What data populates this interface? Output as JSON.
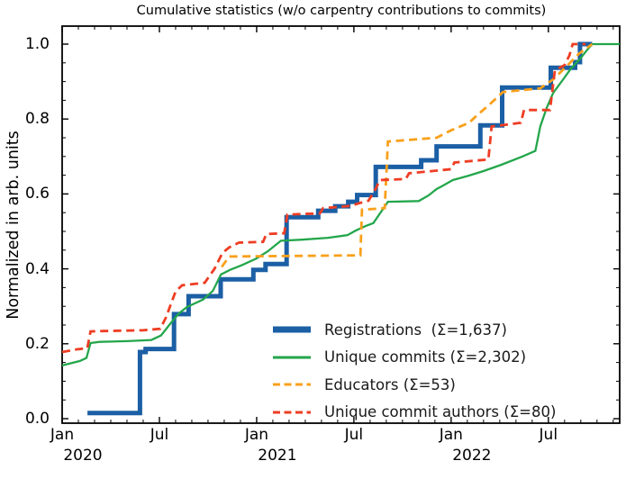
{
  "chart_data": {
    "type": "line",
    "title": "Cumulative statistics (w/o carpentry contributions to commits)",
    "ylabel": "Normalized in arb. units",
    "xlabel": "",
    "x_unit": "months since 2020-01-01",
    "xlim": [
      0,
      34.4
    ],
    "ylim": [
      -0.012,
      1.048
    ],
    "grid": false,
    "legend_position": "lower right",
    "axis_color": "#000000",
    "x_major_ticks": [
      {
        "m": 0,
        "label": "Jan",
        "year": "2020"
      },
      {
        "m": 6,
        "label": "Jul",
        "year": ""
      },
      {
        "m": 12,
        "label": "Jan",
        "year": "2021"
      },
      {
        "m": 18,
        "label": "Jul",
        "year": ""
      },
      {
        "m": 24,
        "label": "Jan",
        "year": "2022"
      },
      {
        "m": 30,
        "label": "Jul",
        "year": ""
      }
    ],
    "y_major_ticks": [
      {
        "v": 0.0,
        "label": "0.0"
      },
      {
        "v": 0.2,
        "label": "0.2"
      },
      {
        "v": 0.4,
        "label": "0.4"
      },
      {
        "v": 0.6,
        "label": "0.6"
      },
      {
        "v": 0.8,
        "label": "0.8"
      },
      {
        "v": 1.0,
        "label": "1.0"
      }
    ],
    "x_minor_tick_every_months": 1,
    "y_minor_tick_every": 0.05,
    "series": [
      {
        "name": "Registrations",
        "total": 1637,
        "legend_label": "Registrations  (Σ=1,637)",
        "color": "#1b5fa5",
        "style": "solid",
        "width": 5,
        "points": [
          [
            1.56,
            0.015
          ],
          [
            4.8,
            0.015
          ],
          [
            4.8,
            0.178
          ],
          [
            5.15,
            0.178
          ],
          [
            5.15,
            0.186
          ],
          [
            6.9,
            0.186
          ],
          [
            6.9,
            0.279
          ],
          [
            7.8,
            0.279
          ],
          [
            7.8,
            0.327
          ],
          [
            9.78,
            0.327
          ],
          [
            9.78,
            0.372
          ],
          [
            11.8,
            0.372
          ],
          [
            11.8,
            0.397
          ],
          [
            12.55,
            0.397
          ],
          [
            12.55,
            0.413
          ],
          [
            13.85,
            0.413
          ],
          [
            13.85,
            0.538
          ],
          [
            15.8,
            0.538
          ],
          [
            15.8,
            0.555
          ],
          [
            16.85,
            0.555
          ],
          [
            16.85,
            0.567
          ],
          [
            17.65,
            0.567
          ],
          [
            17.65,
            0.579
          ],
          [
            18.2,
            0.579
          ],
          [
            18.2,
            0.597
          ],
          [
            19.35,
            0.597
          ],
          [
            19.35,
            0.672
          ],
          [
            22.15,
            0.672
          ],
          [
            22.15,
            0.69
          ],
          [
            23.1,
            0.69
          ],
          [
            23.1,
            0.727
          ],
          [
            25.8,
            0.727
          ],
          [
            25.8,
            0.783
          ],
          [
            27.15,
            0.783
          ],
          [
            27.15,
            0.884
          ],
          [
            30.15,
            0.884
          ],
          [
            30.15,
            0.937
          ],
          [
            31.65,
            0.937
          ],
          [
            31.65,
            0.952
          ],
          [
            31.95,
            0.952
          ],
          [
            31.95,
            1.0
          ],
          [
            32.7,
            1.0
          ]
        ]
      },
      {
        "name": "Unique commits",
        "total": 2302,
        "legend_label": "Unique commits (Σ=2,302)",
        "color": "#23a64b",
        "style": "solid",
        "width": 2.3,
        "points": [
          [
            0,
            0.142
          ],
          [
            1.1,
            0.154
          ],
          [
            1.5,
            0.162
          ],
          [
            1.75,
            0.202
          ],
          [
            2.3,
            0.205
          ],
          [
            4.0,
            0.207
          ],
          [
            5.5,
            0.21
          ],
          [
            6.1,
            0.222
          ],
          [
            6.7,
            0.255
          ],
          [
            7.2,
            0.281
          ],
          [
            7.7,
            0.298
          ],
          [
            8.7,
            0.318
          ],
          [
            9.3,
            0.341
          ],
          [
            9.8,
            0.385
          ],
          [
            10.4,
            0.398
          ],
          [
            11.1,
            0.41
          ],
          [
            12.0,
            0.428
          ],
          [
            12.7,
            0.447
          ],
          [
            13.5,
            0.475
          ],
          [
            14.8,
            0.478
          ],
          [
            16.4,
            0.483
          ],
          [
            17.6,
            0.49
          ],
          [
            18.1,
            0.502
          ],
          [
            18.7,
            0.514
          ],
          [
            19.2,
            0.522
          ],
          [
            19.8,
            0.56
          ],
          [
            20.1,
            0.579
          ],
          [
            22.0,
            0.581
          ],
          [
            22.6,
            0.596
          ],
          [
            23.1,
            0.613
          ],
          [
            23.4,
            0.62
          ],
          [
            24.1,
            0.637
          ],
          [
            25.1,
            0.649
          ],
          [
            26.0,
            0.661
          ],
          [
            27.1,
            0.678
          ],
          [
            28.4,
            0.7
          ],
          [
            29.2,
            0.715
          ],
          [
            29.5,
            0.78
          ],
          [
            29.9,
            0.83
          ],
          [
            30.3,
            0.87
          ],
          [
            30.9,
            0.905
          ],
          [
            31.4,
            0.935
          ],
          [
            32.0,
            0.963
          ],
          [
            32.4,
            0.985
          ],
          [
            32.7,
            1.0
          ],
          [
            34.4,
            1.0
          ]
        ]
      },
      {
        "name": "Educators",
        "total": 53,
        "legend_label": "Educators (Σ=53)",
        "color": "#f9a01b",
        "style": "dashed",
        "width": 2.8,
        "points": [
          [
            9.85,
            0.405
          ],
          [
            10.3,
            0.433
          ],
          [
            18.4,
            0.436
          ],
          [
            18.5,
            0.558
          ],
          [
            19.9,
            0.562
          ],
          [
            20.1,
            0.74
          ],
          [
            23.1,
            0.75
          ],
          [
            24.0,
            0.77
          ],
          [
            25.1,
            0.79
          ],
          [
            25.6,
            0.81
          ],
          [
            26.4,
            0.84
          ],
          [
            27.2,
            0.872
          ],
          [
            29.5,
            0.882
          ],
          [
            30.3,
            0.906
          ],
          [
            31.1,
            0.94
          ],
          [
            31.9,
            0.975
          ],
          [
            32.7,
            1.0
          ]
        ]
      },
      {
        "name": "Unique commit authors",
        "total": 80,
        "legend_label": "Unique commit authors (Σ=80)",
        "color": "#ee3d23",
        "style": "dashed",
        "width": 2.8,
        "points": [
          [
            0,
            0.178
          ],
          [
            0.9,
            0.185
          ],
          [
            1.55,
            0.188
          ],
          [
            1.75,
            0.233
          ],
          [
            2.5,
            0.234
          ],
          [
            5.0,
            0.236
          ],
          [
            6.05,
            0.24
          ],
          [
            6.4,
            0.27
          ],
          [
            7.0,
            0.34
          ],
          [
            7.4,
            0.356
          ],
          [
            8.8,
            0.363
          ],
          [
            9.4,
            0.4
          ],
          [
            9.9,
            0.443
          ],
          [
            10.3,
            0.457
          ],
          [
            10.9,
            0.47
          ],
          [
            12.4,
            0.472
          ],
          [
            12.6,
            0.493
          ],
          [
            13.7,
            0.495
          ],
          [
            13.9,
            0.545
          ],
          [
            15.9,
            0.548
          ],
          [
            16.1,
            0.562
          ],
          [
            17.8,
            0.568
          ],
          [
            18.3,
            0.575
          ],
          [
            18.9,
            0.582
          ],
          [
            19.3,
            0.61
          ],
          [
            19.6,
            0.637
          ],
          [
            21.2,
            0.64
          ],
          [
            21.4,
            0.655
          ],
          [
            24.0,
            0.666
          ],
          [
            24.2,
            0.684
          ],
          [
            26.3,
            0.692
          ],
          [
            26.5,
            0.78
          ],
          [
            28.3,
            0.79
          ],
          [
            28.5,
            0.824
          ],
          [
            30.1,
            0.824
          ],
          [
            30.4,
            0.93
          ],
          [
            31.0,
            0.944
          ],
          [
            31.3,
            0.97
          ],
          [
            31.5,
            1.0
          ],
          [
            32.3,
            1.0
          ]
        ]
      }
    ]
  }
}
